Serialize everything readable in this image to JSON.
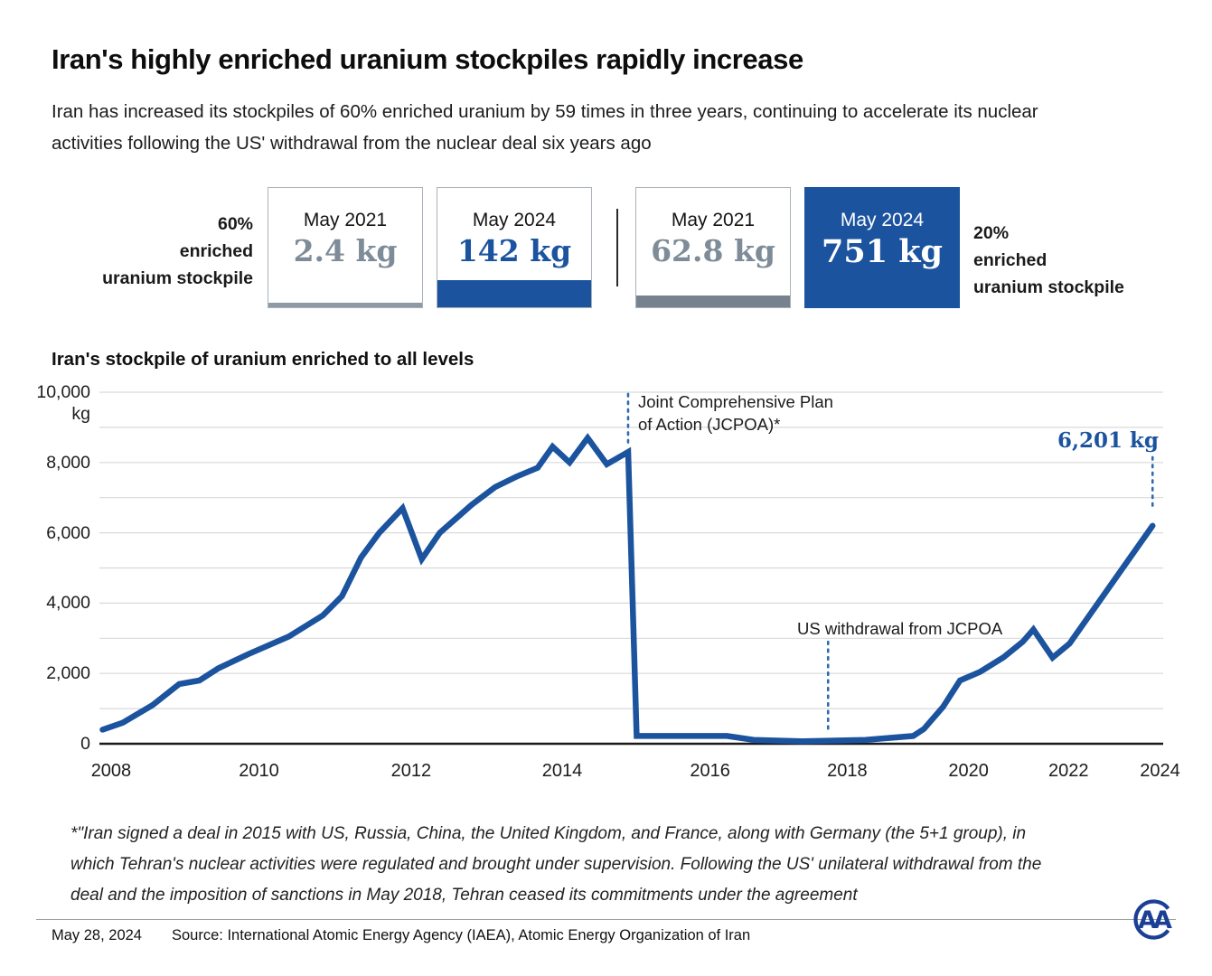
{
  "colors": {
    "accent_blue": "#1b539e",
    "muted_gray_value": "#7d8c98",
    "gray_bar": "#76838e",
    "grid": "#d9d9d9",
    "axis": "#1a1a1a",
    "annotation_line": "#2e6ab1"
  },
  "header": {
    "title": "Iran's highly enriched uranium stockpiles rapidly increase",
    "subtitle": "Iran has increased its stockpiles of 60% enriched uranium by 59 times in three years, continuing to accelerate its nuclear activities following the US' withdrawal from the nuclear deal six years ago"
  },
  "comparison": {
    "left_label": "60%\nenriched\nuranium stockpile",
    "right_label": "20%\nenriched\nuranium stockpile",
    "boxes": [
      {
        "period": "May 2021",
        "value": "2.4 kg"
      },
      {
        "period": "May 2024",
        "value": "142 kg"
      },
      {
        "period": "May 2021",
        "value": "62.8 kg"
      },
      {
        "period": "May 2024",
        "value": "751 kg"
      }
    ]
  },
  "chart_data": {
    "type": "line",
    "title": "Iran's stockpile of uranium enriched to all levels",
    "unit": "kg",
    "ylim": [
      0,
      10000
    ],
    "grid": "horizontal gridlines every 1,000 kg",
    "x_axis_note": "x positions are fractions of the plot width; year spacing is non-linear (follows report sequence)",
    "yticks": [
      {
        "label": "10,000",
        "sub": "kg",
        "value": 10000
      },
      {
        "label": "8,000",
        "value": 8000
      },
      {
        "label": "6,000",
        "value": 6000
      },
      {
        "label": "4,000",
        "value": 4000
      },
      {
        "label": "2,000",
        "value": 2000
      },
      {
        "label": "0",
        "value": 0
      }
    ],
    "xticks": [
      {
        "label": "2008",
        "f": 0.011
      },
      {
        "label": "2010",
        "f": 0.15
      },
      {
        "label": "2012",
        "f": 0.293
      },
      {
        "label": "2014",
        "f": 0.435
      },
      {
        "label": "2016",
        "f": 0.574
      },
      {
        "label": "2018",
        "f": 0.703
      },
      {
        "label": "2020",
        "f": 0.817
      },
      {
        "label": "2022",
        "f": 0.911
      },
      {
        "label": "2024",
        "f": 0.997
      }
    ],
    "series": [
      {
        "name": "Iran's stockpile of uranium enriched to all levels (kg)",
        "points": [
          [
            0.003,
            400
          ],
          [
            0.022,
            600
          ],
          [
            0.05,
            1100
          ],
          [
            0.075,
            1700
          ],
          [
            0.094,
            1800
          ],
          [
            0.112,
            2150
          ],
          [
            0.14,
            2550
          ],
          [
            0.178,
            3050
          ],
          [
            0.21,
            3650
          ],
          [
            0.228,
            4200
          ],
          [
            0.246,
            5300
          ],
          [
            0.263,
            6000
          ],
          [
            0.285,
            6700
          ],
          [
            0.303,
            5250
          ],
          [
            0.32,
            6000
          ],
          [
            0.35,
            6800
          ],
          [
            0.372,
            7300
          ],
          [
            0.392,
            7600
          ],
          [
            0.412,
            7850
          ],
          [
            0.426,
            8450
          ],
          [
            0.442,
            8000
          ],
          [
            0.459,
            8700
          ],
          [
            0.477,
            7950
          ],
          [
            0.497,
            8300
          ],
          [
            0.505,
            220
          ],
          [
            0.59,
            220
          ],
          [
            0.615,
            110
          ],
          [
            0.66,
            70
          ],
          [
            0.72,
            110
          ],
          [
            0.765,
            220
          ],
          [
            0.775,
            420
          ],
          [
            0.793,
            1050
          ],
          [
            0.809,
            1800
          ],
          [
            0.828,
            2050
          ],
          [
            0.85,
            2460
          ],
          [
            0.868,
            2900
          ],
          [
            0.878,
            3250
          ],
          [
            0.896,
            2450
          ],
          [
            0.912,
            2850
          ],
          [
            0.99,
            6201
          ]
        ]
      }
    ],
    "annotations": [
      {
        "id": "jcpoa",
        "text": "Joint Comprehensive Plan\nof Action (JCPOA)*",
        "line": {
          "x_f": 0.497,
          "from_kg": 9950,
          "to_kg": 8500
        }
      },
      {
        "id": "us-withdrawal",
        "text": "US withdrawal from JCPOA",
        "line": {
          "x_f": 0.685,
          "from_kg": 2900,
          "to_kg": 420
        }
      },
      {
        "id": "latest-value",
        "text": "6,201 kg",
        "line": {
          "x_f": 0.99,
          "from_kg": 8150,
          "to_kg": 6750
        }
      }
    ]
  },
  "footnote": "*\"Iran signed a deal in 2015 with US, Russia, China, the United Kingdom, and France, along with Germany (the 5+1 group), in which Tehran's nuclear activities were regulated and brought under supervision. Following the US' unilateral withdrawal from the deal and the imposition of sanctions in May 2018, Tehran ceased its commitments under the agreement",
  "footer": {
    "date": "May 28, 2024",
    "source": "Source: International Atomic Energy Agency (IAEA), Atomic Energy Organization of Iran",
    "logo": "AA"
  }
}
